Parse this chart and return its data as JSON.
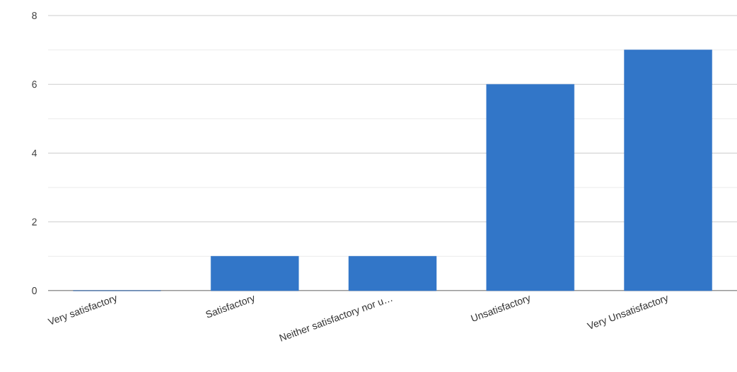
{
  "chart_data": {
    "type": "bar",
    "categories": [
      "Very satisfactory",
      "Satisfactory",
      "Neither satisfactory nor u…",
      "Unsatisfactory",
      "Very Unsatisfactory"
    ],
    "values": [
      0,
      1,
      1,
      6,
      7
    ],
    "color": "#3276c8",
    "ylim": [
      0,
      8
    ],
    "yticks": [
      0,
      2,
      4,
      6,
      8
    ],
    "grid": "y"
  }
}
